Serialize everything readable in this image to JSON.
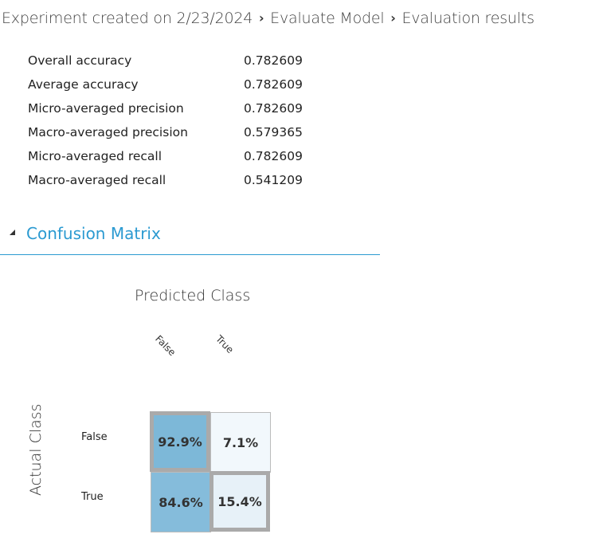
{
  "breadcrumb": {
    "items": [
      "Experiment created on 2/23/2024",
      "Evaluate Model",
      "Evaluation results"
    ],
    "separator_icon": "chevron-right-icon"
  },
  "metrics": [
    {
      "label": "Overall accuracy",
      "value": "0.782609"
    },
    {
      "label": "Average accuracy",
      "value": "0.782609"
    },
    {
      "label": "Micro-averaged precision",
      "value": "0.782609"
    },
    {
      "label": "Macro-averaged precision",
      "value": "0.579365"
    },
    {
      "label": "Micro-averaged recall",
      "value": "0.782609"
    },
    {
      "label": "Macro-averaged recall",
      "value": "0.541209"
    }
  ],
  "section": {
    "title": "Confusion Matrix",
    "toggle_icon": "collapse-triangle-icon",
    "accent_color": "#2b9ad1"
  },
  "confusion_matrix": {
    "predicted_title": "Predicted Class",
    "actual_title": "Actual Class",
    "columns": [
      "False",
      "True"
    ],
    "rows": [
      "False",
      "True"
    ],
    "cells": [
      [
        {
          "label": "92.9%",
          "fraction": 0.929,
          "color": "#7db8d8"
        },
        {
          "label": "7.1%",
          "fraction": 0.071,
          "color": "#f2f8fc"
        }
      ],
      [
        {
          "label": "84.6%",
          "fraction": 0.846,
          "color": "#85bcdb"
        },
        {
          "label": "15.4%",
          "fraction": 0.154,
          "color": "#e7f1f8"
        }
      ]
    ]
  }
}
